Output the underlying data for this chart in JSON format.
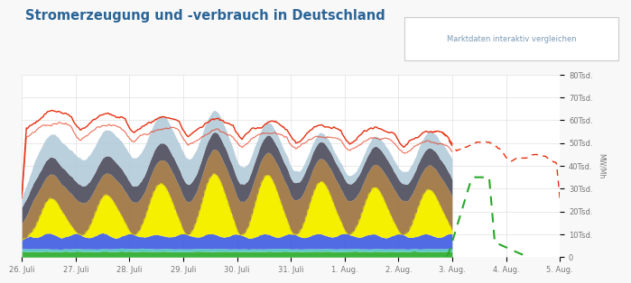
{
  "title": "Stromerzeugung und -verbrauch in Deutschland",
  "button_text": "Marktdaten interaktiv vergleichen",
  "title_color": "#2a6496",
  "background_color": "#f8f8f8",
  "plot_bg_color": "#ffffff",
  "ylabel": "MW/Mh",
  "ytick_labels": [
    "0",
    "10Tsd.",
    "20Tsd.",
    "30Tsd.",
    "40Tsd.",
    "50Tsd.",
    "60Tsd.",
    "70Tsd.",
    "80Tsd."
  ],
  "xtick_labels": [
    "26. Juli",
    "27. Juli",
    "28. Juli",
    "29. Juli",
    "30. Juli",
    "31. Juli",
    "1. Aug.",
    "2. Aug.",
    "3. Aug.",
    "4. Aug.",
    "5. Aug."
  ],
  "colors": {
    "green": "#3db33d",
    "cyan": "#5ec8c8",
    "blue": "#3d5be0",
    "yellow": "#f5f000",
    "brown": "#a07845",
    "dark": "#4a4a5a",
    "lightblue": "#afc8d8",
    "orange": "#e83010",
    "green_dash": "#28a828"
  }
}
